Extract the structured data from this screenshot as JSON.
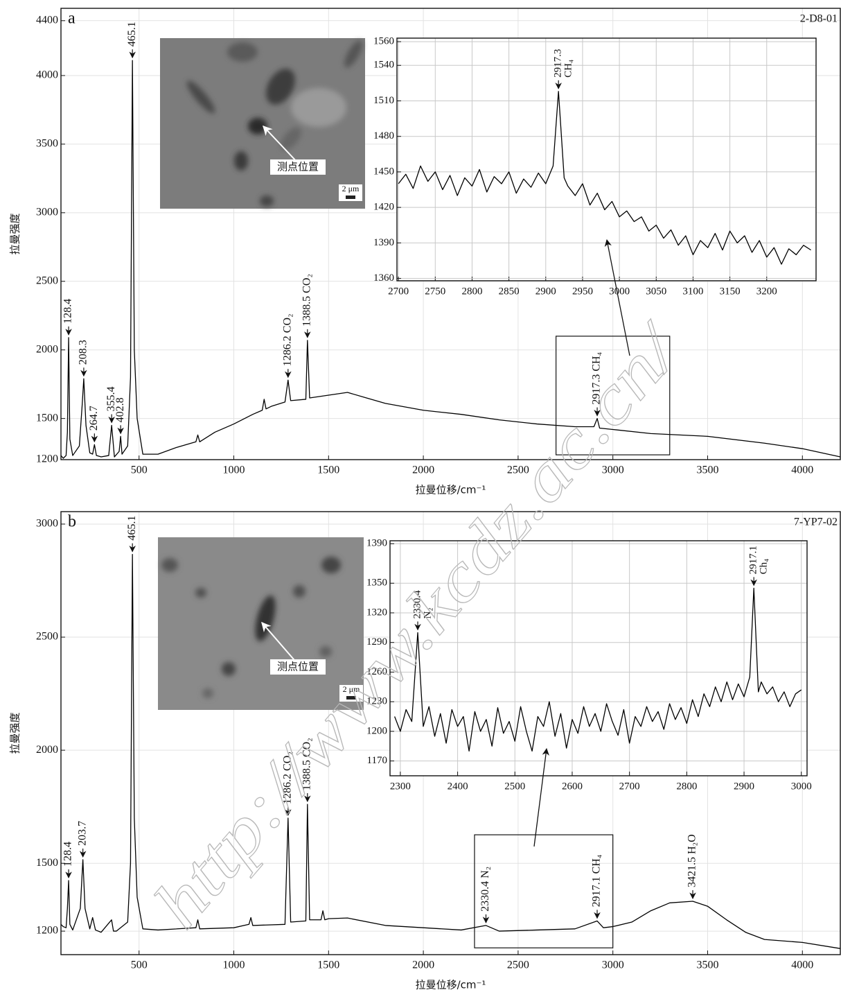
{
  "chart_data": [
    {
      "type": "line",
      "panel": "a",
      "sample": "2-D8-01",
      "xlabel": "拉曼位移/cm⁻¹",
      "ylabel": "拉曼强度",
      "color": "#000000",
      "grid": true,
      "xlim": [
        88,
        4200
      ],
      "ylim": [
        1200,
        4490
      ],
      "xticks": [
        500,
        1000,
        1500,
        2000,
        2500,
        3000,
        3500,
        4000
      ],
      "yticks": [
        1200,
        1500,
        2000,
        2500,
        3000,
        3500,
        4000,
        4400
      ],
      "x": [
        88,
        100,
        115,
        122,
        128.4,
        135,
        150,
        185,
        200,
        208.3,
        220,
        240,
        255,
        264.7,
        275,
        300,
        340,
        355.4,
        370,
        395,
        402.8,
        410,
        440,
        455,
        465.1,
        475,
        490,
        520,
        600,
        700,
        800,
        810,
        820,
        900,
        1000,
        1100,
        1150,
        1160,
        1170,
        1200,
        1270,
        1286.2,
        1300,
        1380,
        1388.5,
        1400,
        1500,
        1600,
        1700,
        1800,
        2000,
        2200,
        2400,
        2600,
        2800,
        2900,
        2917.3,
        2930,
        3000,
        3200,
        3500,
        3800,
        4000,
        4200
      ],
      "values": [
        1230,
        1210,
        1230,
        1400,
        2090,
        1350,
        1230,
        1300,
        1600,
        1790,
        1450,
        1250,
        1240,
        1310,
        1230,
        1220,
        1230,
        1450,
        1220,
        1260,
        1370,
        1240,
        1300,
        1800,
        4110,
        2000,
        1500,
        1240,
        1240,
        1290,
        1330,
        1380,
        1330,
        1400,
        1460,
        1530,
        1560,
        1640,
        1570,
        1590,
        1620,
        1780,
        1630,
        1640,
        2070,
        1650,
        1670,
        1690,
        1650,
        1610,
        1560,
        1530,
        1490,
        1460,
        1440,
        1440,
        1500,
        1430,
        1420,
        1390,
        1370,
        1320,
        1280,
        1220
      ],
      "annotations": [
        {
          "x": 128.4,
          "text": "128.4"
        },
        {
          "x": 208.3,
          "text": "208.3"
        },
        {
          "x": 264.7,
          "text": "264.7"
        },
        {
          "x": 355.4,
          "text": "355.4"
        },
        {
          "x": 402.8,
          "text": "402.8"
        },
        {
          "x": 465.1,
          "text": "465.1"
        },
        {
          "x": 1286.2,
          "text": "1286.2 CO₂"
        },
        {
          "x": 1388.5,
          "text": "1388.5 CO₂"
        },
        {
          "x": 2917.3,
          "text": "2917.3 CH₄"
        }
      ],
      "zoom_box": {
        "xlim": [
          2700,
          3300
        ],
        "ylim": [
          1235,
          2100
        ]
      }
    },
    {
      "type": "line",
      "color": "#000000",
      "grid": true,
      "xlim": [
        2698,
        3267
      ],
      "ylim": [
        1358,
        1563
      ],
      "xticks": [
        2700,
        2750,
        2800,
        2850,
        2900,
        2950,
        3000,
        3050,
        3100,
        3150,
        3200
      ],
      "yticks": [
        1360,
        1390,
        1420,
        1450,
        1480,
        1510,
        1540,
        1560
      ],
      "x": [
        2700,
        2710,
        2720,
        2730,
        2740,
        2750,
        2760,
        2770,
        2780,
        2790,
        2800,
        2810,
        2820,
        2830,
        2840,
        2850,
        2860,
        2870,
        2880,
        2890,
        2900,
        2910,
        2917.3,
        2925,
        2930,
        2940,
        2950,
        2960,
        2970,
        2980,
        2990,
        3000,
        3010,
        3020,
        3030,
        3040,
        3050,
        3060,
        3070,
        3080,
        3090,
        3100,
        3110,
        3120,
        3130,
        3140,
        3150,
        3160,
        3170,
        3180,
        3190,
        3200,
        3210,
        3220,
        3230,
        3240,
        3250,
        3260
      ],
      "values": [
        1440,
        1448,
        1436,
        1455,
        1442,
        1450,
        1435,
        1447,
        1430,
        1445,
        1438,
        1452,
        1433,
        1446,
        1440,
        1450,
        1432,
        1444,
        1437,
        1449,
        1440,
        1455,
        1518,
        1445,
        1438,
        1430,
        1440,
        1422,
        1432,
        1418,
        1425,
        1412,
        1417,
        1408,
        1412,
        1400,
        1405,
        1394,
        1401,
        1388,
        1396,
        1380,
        1392,
        1386,
        1398,
        1384,
        1400,
        1390,
        1396,
        1382,
        1392,
        1378,
        1386,
        1372,
        1385,
        1380,
        1388,
        1384
      ],
      "annotations": [
        {
          "x": 2917.3,
          "text": "2917.3",
          "note": "CH₄"
        }
      ]
    },
    {
      "type": "line",
      "panel": "b",
      "sample": "7-YP7-02",
      "xlabel": "拉曼位移/cm⁻¹",
      "ylabel": "拉曼强度",
      "color": "#000000",
      "grid": true,
      "xlim": [
        88,
        4200
      ],
      "ylim": [
        1096,
        3055
      ],
      "xticks": [
        500,
        1000,
        1500,
        2000,
        2500,
        3000,
        3500,
        4000
      ],
      "yticks": [
        1200,
        1500,
        2000,
        2500,
        3000
      ],
      "x": [
        88,
        100,
        115,
        122,
        128.4,
        135,
        150,
        190,
        203.7,
        215,
        240,
        255,
        270,
        300,
        355,
        365,
        380,
        440,
        455,
        465.1,
        475,
        490,
        520,
        600,
        800,
        810,
        820,
        1000,
        1080,
        1090,
        1100,
        1270,
        1286.2,
        1300,
        1380,
        1388.5,
        1400,
        1460,
        1470,
        1480,
        1500,
        1600,
        1800,
        2000,
        2200,
        2330.4,
        2400,
        2600,
        2800,
        2917.1,
        2950,
        3000,
        3100,
        3200,
        3300,
        3421.5,
        3500,
        3600,
        3700,
        3800,
        4000,
        4200
      ],
      "values": [
        1230,
        1220,
        1215,
        1300,
        1424,
        1230,
        1205,
        1300,
        1516,
        1300,
        1210,
        1260,
        1205,
        1195,
        1250,
        1200,
        1200,
        1240,
        1500,
        2866,
        1700,
        1350,
        1210,
        1205,
        1215,
        1250,
        1210,
        1215,
        1230,
        1260,
        1225,
        1230,
        1700,
        1240,
        1245,
        1761,
        1250,
        1250,
        1290,
        1250,
        1255,
        1258,
        1225,
        1215,
        1205,
        1225,
        1200,
        1205,
        1210,
        1245,
        1215,
        1220,
        1240,
        1290,
        1325,
        1332,
        1310,
        1250,
        1195,
        1163,
        1150,
        1123
      ],
      "annotations": [
        {
          "x": 128.4,
          "text": "128.4"
        },
        {
          "x": 203.7,
          "text": "203.7"
        },
        {
          "x": 465.1,
          "text": "465.1"
        },
        {
          "x": 1286.2,
          "text": "1286.2 CO₂"
        },
        {
          "x": 1388.5,
          "text": "1388.5 CO₂"
        },
        {
          "x": 2330.4,
          "text": "2330.4 N₂"
        },
        {
          "x": 2917.1,
          "text": "2917.1 CH₄"
        },
        {
          "x": 3421.5,
          "text": "3421.5 H₂O"
        }
      ],
      "zoom_box": {
        "xlim": [
          2270,
          3000
        ],
        "ylim": [
          1126,
          1626
        ]
      }
    },
    {
      "type": "line",
      "color": "#000000",
      "grid": true,
      "xlim": [
        2282,
        3010
      ],
      "ylim": [
        1155,
        1393
      ],
      "xticks": [
        2300,
        2400,
        2500,
        2600,
        2700,
        2800,
        2900,
        3000
      ],
      "yticks": [
        1170,
        1200,
        1230,
        1260,
        1290,
        1320,
        1350,
        1390
      ],
      "x": [
        2290,
        2300,
        2310,
        2320,
        2330.4,
        2340,
        2350,
        2360,
        2370,
        2380,
        2390,
        2400,
        2410,
        2420,
        2430,
        2440,
        2450,
        2460,
        2470,
        2480,
        2490,
        2500,
        2510,
        2520,
        2530,
        2540,
        2550,
        2560,
        2570,
        2580,
        2590,
        2600,
        2610,
        2620,
        2630,
        2640,
        2650,
        2660,
        2670,
        2680,
        2690,
        2700,
        2710,
        2720,
        2730,
        2740,
        2750,
        2760,
        2770,
        2780,
        2790,
        2800,
        2810,
        2820,
        2830,
        2840,
        2850,
        2860,
        2870,
        2880,
        2890,
        2900,
        2910,
        2917.1,
        2925,
        2930,
        2940,
        2950,
        2960,
        2970,
        2980,
        2990,
        3000
      ],
      "values": [
        1215,
        1200,
        1222,
        1210,
        1300,
        1205,
        1225,
        1195,
        1218,
        1188,
        1222,
        1205,
        1215,
        1180,
        1220,
        1200,
        1212,
        1185,
        1224,
        1198,
        1210,
        1190,
        1225,
        1200,
        1180,
        1215,
        1205,
        1230,
        1195,
        1218,
        1183,
        1212,
        1198,
        1225,
        1205,
        1218,
        1200,
        1228,
        1210,
        1196,
        1222,
        1188,
        1215,
        1205,
        1225,
        1210,
        1220,
        1202,
        1228,
        1212,
        1224,
        1208,
        1232,
        1215,
        1238,
        1225,
        1245,
        1230,
        1250,
        1232,
        1248,
        1235,
        1255,
        1345,
        1240,
        1250,
        1238,
        1245,
        1230,
        1240,
        1225,
        1238,
        1242
      ],
      "annotations": [
        {
          "x": 2330.4,
          "text": "2330.4",
          "note": "N₂"
        },
        {
          "x": 2917.1,
          "text": "2917.1",
          "note": "Ch₄"
        }
      ]
    }
  ],
  "photos": [
    {
      "label": "测点位置",
      "scale": "2 μm"
    },
    {
      "label": "测点位置",
      "scale": "2 μm"
    }
  ],
  "watermark": "http://www.kcdz.ac.cn/"
}
